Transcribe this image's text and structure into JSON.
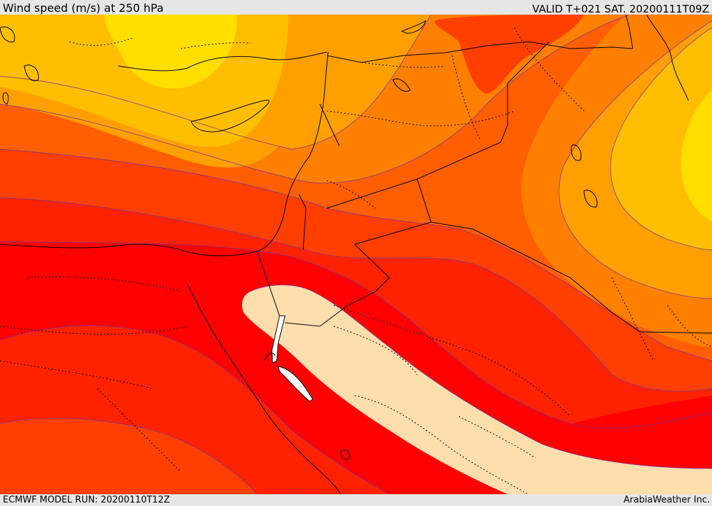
{
  "header": {
    "title": "Wind speed (m/s) at 250 hPa",
    "valid": "VALID T+021 SAT. 20200111T09Z"
  },
  "footer": {
    "model_run": "ECMWF MODEL RUN: 20200110T12Z",
    "credit": "ArabiaWeather Inc."
  },
  "map": {
    "field": "wind speed",
    "level": "250 hPa",
    "units": "m/s",
    "shading_colors": [
      "#ffdead",
      "#ffde00",
      "#ffbf00",
      "#ff9f00",
      "#ff7f00",
      "#ff5f00",
      "#ff3f00",
      "#ff2200",
      "#ff0000"
    ],
    "coastline_color": "#000000",
    "border_color": "#000000",
    "contour_color": "#7030a0"
  }
}
